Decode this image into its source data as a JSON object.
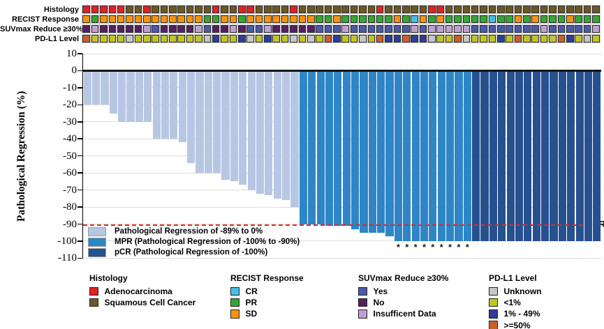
{
  "annotation_tracks": {
    "rows": [
      {
        "key": "histology",
        "label": "Histology",
        "cells": [
          "A",
          "A",
          "A",
          "A",
          "A",
          "S",
          "S",
          "A",
          "S",
          "S",
          "S",
          "S",
          "S",
          "S",
          "S",
          "A",
          "S",
          "S",
          "A",
          "A",
          "S",
          "S",
          "S",
          "S",
          "A",
          "S",
          "S",
          "S",
          "S",
          "S",
          "S",
          "S",
          "S",
          "S",
          "A",
          "S",
          "S",
          "S",
          "S",
          "S",
          "A",
          "A",
          "S",
          "S",
          "S",
          "S",
          "S",
          "S",
          "S",
          "S",
          "S",
          "S",
          "S",
          "S",
          "S",
          "S",
          "S",
          "S",
          "S",
          "S"
        ]
      },
      {
        "key": "recist",
        "label": "RECIST Response",
        "cells": [
          "SD",
          "PR",
          "SD",
          "SD",
          "SD",
          "SD",
          "SD",
          "SD",
          "SD",
          "SD",
          "SD",
          "SD",
          "SD",
          "SD",
          "PR",
          "PR",
          "SD",
          "SD",
          "PR",
          "SD",
          "SD",
          "SD",
          "SD",
          "SD",
          "SD",
          "SD",
          "SD",
          "PR",
          "PR",
          "SD",
          "PR",
          "PR",
          "PR",
          "PR",
          "PR",
          "PR",
          "SD",
          "PR",
          "CR",
          "SD",
          "PR",
          "SD",
          "PR",
          "PR",
          "PR",
          "PR",
          "PR",
          "CR",
          "PR",
          "PR",
          "SD",
          "PR",
          "SD",
          "PR",
          "PR",
          "PR",
          "SD",
          "PR",
          "PR",
          "PR"
        ]
      },
      {
        "key": "suvmax",
        "label": "SUVmax Reduce ≥30%",
        "cells": [
          "N",
          "I",
          "N",
          "N",
          "N",
          "N",
          "N",
          "I",
          "Y",
          "N",
          "N",
          "N",
          "N",
          "I",
          "Y",
          "N",
          "N",
          "I",
          "N",
          "Y",
          "Y",
          "I",
          "N",
          "N",
          "N",
          "N",
          "N",
          "Y",
          "Y",
          "Y",
          "I",
          "Y",
          "Y",
          "Y",
          "Y",
          "Y",
          "Y",
          "Y",
          "I",
          "Y",
          "I",
          "I",
          "I",
          "I",
          "I",
          "Y",
          "Y",
          "Y",
          "Y",
          "Y",
          "Y",
          "Y",
          "Y",
          "I",
          "Y",
          "Y",
          "Y",
          "Y",
          "Y",
          "I"
        ]
      },
      {
        "key": "pdl1",
        "label": "PD-L1 Level",
        "cells": [
          "G",
          "L",
          "L",
          "L",
          "L",
          "U",
          "L",
          "L",
          "L",
          "L",
          "L",
          "L",
          "L",
          "L",
          "U",
          "B",
          "L",
          "L",
          "B",
          "U",
          "L",
          "B",
          "L",
          "L",
          "U",
          "L",
          "U",
          "L",
          "G",
          "B",
          "L",
          "L",
          "U",
          "L",
          "G",
          "B",
          "B",
          "G",
          "B",
          "B",
          "U",
          "L",
          "L",
          "G",
          "U",
          "L",
          "L",
          "L",
          "B",
          "L",
          "G",
          "L",
          "L",
          "L",
          "L",
          "G",
          "B",
          "L",
          "U",
          "L"
        ]
      }
    ],
    "cell_colors": {
      "histology": {
        "A": "#e02125",
        "S": "#6d5824"
      },
      "recist": {
        "CR": "#45bde8",
        "PR": "#36a632",
        "SD": "#f5920f"
      },
      "suvmax": {
        "Y": "#4a5aa8",
        "N": "#571f63",
        "I": "#bfa0d3"
      },
      "pdl1": {
        "U": "#c6c6c6",
        "L": "#c0c524",
        "B": "#2e3d96",
        "G": "#cc5f28"
      }
    }
  },
  "chart_data": {
    "type": "bar",
    "title": "",
    "xlabel": "",
    "ylabel": "Pathological Regression (%)",
    "ylim": [
      -110,
      10
    ],
    "yticks": [
      10,
      0,
      -10,
      -20,
      -30,
      -40,
      -50,
      -60,
      -70,
      -80,
      -90,
      -100,
      -110
    ],
    "grid": "horizontal light gray, zero line black, legend inside lower-left",
    "mpr_threshold": -90,
    "mpr_line_label": "MPR",
    "mpr_line_color": "#ed2420",
    "values": [
      -20,
      -20,
      -20,
      -25,
      -30,
      -30,
      -30,
      -30,
      -40,
      -40,
      -40,
      -42,
      -54,
      -60,
      -60,
      -60,
      -64,
      -65,
      -67,
      -70,
      -72,
      -73,
      -75,
      -76,
      -80,
      -90,
      -90,
      -90,
      -91,
      -91,
      -91,
      -93,
      -95,
      -95,
      -95,
      -97,
      -100,
      -100,
      -100,
      -100,
      -100,
      -100,
      -100,
      -100,
      -100,
      -100,
      -100,
      -100,
      -100,
      -100,
      -100,
      -100,
      -100,
      -100,
      -100,
      -100,
      -100,
      -100,
      -100,
      -100
    ],
    "groups": [
      "REG",
      "REG",
      "REG",
      "REG",
      "REG",
      "REG",
      "REG",
      "REG",
      "REG",
      "REG",
      "REG",
      "REG",
      "REG",
      "REG",
      "REG",
      "REG",
      "REG",
      "REG",
      "REG",
      "REG",
      "REG",
      "REG",
      "REG",
      "REG",
      "REG",
      "MPR",
      "MPR",
      "MPR",
      "MPR",
      "MPR",
      "MPR",
      "MPR",
      "MPR",
      "MPR",
      "MPR",
      "MPR",
      "MPR",
      "MPR",
      "MPR",
      "MPR",
      "MPR",
      "MPR",
      "MPR",
      "MPR",
      "MPR",
      "pCR",
      "pCR",
      "pCR",
      "pCR",
      "pCR",
      "pCR",
      "pCR",
      "pCR",
      "pCR",
      "pCR",
      "pCR",
      "pCR",
      "pCR",
      "pCR",
      "pCR"
    ],
    "asterisk_bars": [
      37,
      38,
      39,
      40,
      41,
      42,
      43,
      44,
      45
    ],
    "asterisk_symbol": "*",
    "bar_colors": {
      "REG": "#b7c7e3",
      "MPR": "#2e86c6",
      "pCR": "#27508e"
    },
    "legend": [
      {
        "group": "REG",
        "label": "Pathological Regression of -89% to 0%"
      },
      {
        "group": "MPR",
        "label": "MPR (Pathological Regression of -100% to -90%)"
      },
      {
        "group": "pCR",
        "label": "pCR (Pathological Regression of -100%)"
      }
    ]
  },
  "bottom_legends": [
    {
      "title": "Histology",
      "items": [
        {
          "label": "Adenocarcinoma",
          "color": "#e02125"
        },
        {
          "label": "Squamous Cell Cancer",
          "color": "#6d5824"
        }
      ]
    },
    {
      "title": "RECIST Response",
      "items": [
        {
          "label": "CR",
          "color": "#45bde8"
        },
        {
          "label": "PR",
          "color": "#36a632"
        },
        {
          "label": "SD",
          "color": "#f5920f"
        }
      ]
    },
    {
      "title": "SUVmax Reduce ≥30%",
      "items": [
        {
          "label": "Yes",
          "color": "#4a5aa8"
        },
        {
          "label": "No",
          "color": "#571f63"
        },
        {
          "label": "Insufficent Data",
          "color": "#bfa0d3"
        }
      ]
    },
    {
      "title": "PD-L1 Level",
      "items": [
        {
          "label": "Unknown",
          "color": "#c6c6c6"
        },
        {
          "label": "<1%",
          "color": "#c0c524"
        },
        {
          "label": "1% - 49%",
          "color": "#2e3d96"
        },
        {
          "label": ">=50%",
          "color": "#cc5f28"
        }
      ]
    }
  ]
}
